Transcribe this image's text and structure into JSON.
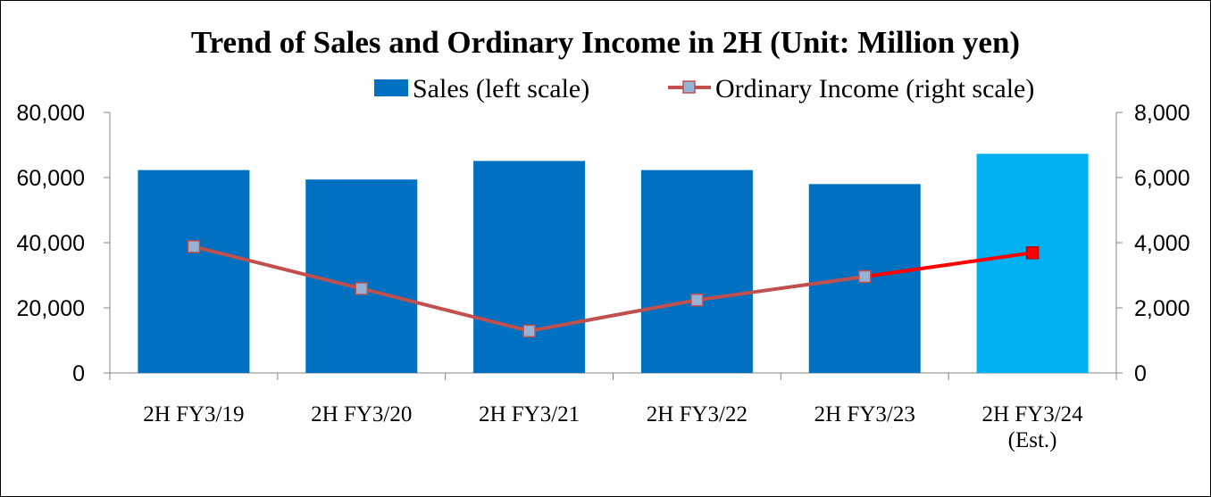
{
  "chart_data": {
    "type": "bar",
    "title": "Trend of Sales and Ordinary Income in 2H (Unit: Million yen)",
    "categories": [
      [
        "2H FY3/19"
      ],
      [
        "2H FY3/20"
      ],
      [
        "2H FY3/21"
      ],
      [
        "2H FY3/22"
      ],
      [
        "2H FY3/23"
      ],
      [
        "2H FY3/24",
        "(Est.)"
      ]
    ],
    "series": [
      {
        "name": "Sales (left scale)",
        "type": "bar",
        "axis": "left",
        "color": "#0070C0",
        "estimate_color": "#00B0F0",
        "values": [
          62300,
          59400,
          65100,
          62300,
          58000,
          67300
        ]
      },
      {
        "name": "Ordinary Income (right scale)",
        "type": "line",
        "axis": "right",
        "line_color": "#C0504D",
        "marker_color": "#95B3D7",
        "estimate_line_color": "#FF0000",
        "estimate_marker_color": "#FF0000",
        "values": [
          3880,
          2590,
          1290,
          2240,
          2960,
          3690
        ]
      }
    ],
    "left_axis": {
      "min": 0,
      "max": 80000,
      "ticks": [
        "0",
        "20,000",
        "40,000",
        "60,000",
        "80,000"
      ]
    },
    "right_axis": {
      "min": 0,
      "max": 8000,
      "ticks": [
        "0",
        "2,000",
        "4,000",
        "6,000",
        "8,000"
      ]
    },
    "estimate_index": 5,
    "legend_position": "top-right",
    "grid": false
  }
}
